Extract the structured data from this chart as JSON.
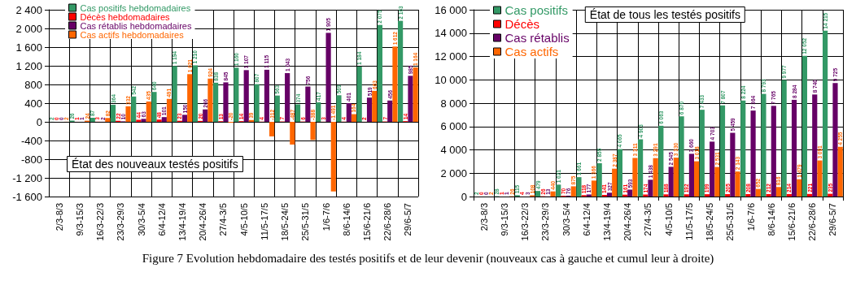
{
  "chart_data": [
    {
      "type": "bar",
      "title": "État des nouveaux testés positifs",
      "categories": [
        "2/3-8/3",
        "9/3-15/3",
        "16/3-22/3",
        "23/3-29/3",
        "30/3-5/4",
        "6/4-12/4",
        "13/4-19/4",
        "20/4-26/4",
        "27/4-3/5",
        "4/5-10/5",
        "11/5-17/5",
        "18/5-24/5",
        "25/5-31/5",
        "1/6-7/6",
        "8/6-14/6",
        "15/6-21/6",
        "22/6-28/6",
        "29/6-5/7"
      ],
      "series": [
        {
          "name": "Cas positifs hebdomadaires",
          "color": "#339966",
          "values": [
            2,
            26,
            87,
            364,
            542,
            640,
            1194,
            1210,
            838,
            1160,
            807,
            563,
            374,
            417,
            569,
            1184,
            2075,
            2163
          ]
        },
        {
          "name": "Décès hebdomadaires",
          "color": "#ff0000",
          "values": [
            0,
            1,
            3,
            22,
            44,
            48,
            23,
            20,
            13,
            14,
            4,
            7,
            6,
            3,
            4,
            2,
            7,
            14
          ]
        },
        {
          "name": "Cas rétablis hebdomadaires",
          "color": "#660066",
          "values": [
            0,
            1,
            2,
            10,
            63,
            101,
            150,
            266,
            845,
            1107,
            1115,
            1043,
            756,
            1905,
            401,
            519,
            456,
            985
          ]
        },
        {
          "name": "Cas actifs hebdomadaires",
          "color": "#ff6600",
          "values": [
            2,
            24,
            82,
            332,
            435,
            491,
            1021,
            924,
            -20,
            39,
            -312,
            -487,
            -388,
            -1491,
            164,
            663,
            1612,
            1164
          ]
        }
      ],
      "ylim": [
        -1600,
        2400
      ],
      "yticks": [
        -1600,
        -1200,
        -800,
        -400,
        0,
        400,
        800,
        1200,
        1600,
        2000,
        2400
      ],
      "grid": true,
      "legend": "top left",
      "data_labels": true,
      "annotations": [
        "Figure  7 Evolution hebdomadaire des testés positifs et de leur devenir (nouveaux cas à gauche et cumul leur à droite)"
      ]
    },
    {
      "type": "bar",
      "title": "État de tous les testés positifs",
      "categories": [
        "2/3-8/3",
        "9/3-15/3",
        "16/3-22/3",
        "23/3-29/3",
        "30/3-5/4",
        "6/4-12/4",
        "13/4-19/4",
        "20/4-26/4",
        "27/4-3/5",
        "4/5-10/5",
        "11/5-17/5",
        "18/5-24/5",
        "25/5-31/5",
        "1/6-7/6",
        "8/6-14/6",
        "15/6-21/6",
        "22/6-28/6",
        "29/6-5/7"
      ],
      "series": [
        {
          "name": "Cas positifs",
          "color": "#339966",
          "values": [
            2,
            28,
            115,
            479,
            1021,
            1661,
            2855,
            4065,
            4903,
            6063,
            6870,
            7433,
            7807,
            8224,
            8793,
            9977,
            12052,
            14215
          ]
        },
        {
          "name": "Décès",
          "color": "#ff0000",
          "values": [
            0,
            1,
            4,
            26,
            70,
            118,
            141,
            161,
            174,
            188,
            192,
            199,
            205,
            208,
            212,
            214,
            221,
            235
          ]
        },
        {
          "name": "Cas rétablis",
          "color": "#660066",
          "values": [
            0,
            1,
            3,
            13,
            76,
            177,
            327,
            593,
            1438,
            2545,
            3660,
            4703,
            5459,
            7364,
            7765,
            8284,
            8740,
            9725
          ]
        },
        {
          "name": "Cas actifs",
          "color": "#ff6600",
          "values": [
            2,
            26,
            108,
            440,
            875,
            1366,
            2387,
            3311,
            3291,
            3330,
            3018,
            2531,
            2143,
            652,
            816,
            1479,
            3091,
            4255
          ]
        }
      ],
      "ylim": [
        0,
        16000
      ],
      "yticks": [
        0,
        2000,
        4000,
        6000,
        8000,
        10000,
        12000,
        14000,
        16000
      ],
      "grid": true,
      "legend": "top left",
      "data_labels": true
    }
  ]
}
